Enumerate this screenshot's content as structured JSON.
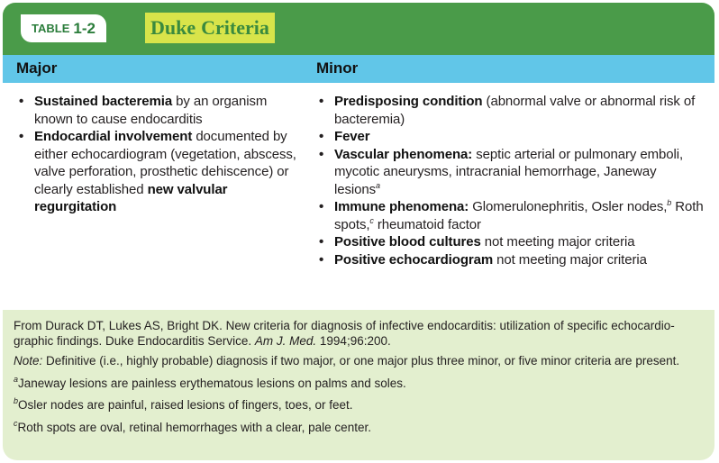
{
  "title_bar": {
    "table_label": "TABLE",
    "table_number": "1-2",
    "title_word1": "Duke",
    "title_word2": "Criteria"
  },
  "columns": {
    "major_heading": "Major",
    "minor_heading": "Minor"
  },
  "major_items": [
    {
      "bold": "Sustained bacteremia",
      "rest": " by an organism known to cause endocarditis"
    },
    {
      "bold": "Endocardial involvement",
      "rest": " documented by either echocardiogram (vegetation, abscess, valve perforation, prosthetic dehiscence) or clearly established ",
      "bold2": "new valvular regurgitation"
    }
  ],
  "minor_items": [
    {
      "bold": "Predisposing condition",
      "rest": " (abnormal valve or abnormal risk of bacteremia)"
    },
    {
      "bold": "Fever",
      "rest": ""
    },
    {
      "bold": "Vascular phenomena:",
      "rest": " septic arterial or pulmonary emboli, mycotic aneurysms, intracranial hemorrhage, Janeway lesions",
      "sup": "a"
    },
    {
      "bold": "Immune phenomena:",
      "rest": " Glomerulonephritis, Osler nodes,",
      "sup": "b",
      "rest2": " Roth spots,",
      "sup2": "c",
      "rest3": " rheumatoid factor"
    },
    {
      "bold": "Positive blood cultures",
      "rest": " not meeting major criteria"
    },
    {
      "bold": "Positive echocardiogram",
      "rest": " not meeting major criteria"
    }
  ],
  "footer": {
    "reference_text": "From Durack DT, Lukes AS, Bright DK. New criteria for diagnosis of infective endocarditis: utilization of specific echocardio-graphic findings. Duke Endocarditis Service. ",
    "reference_journal": "Am J. Med.",
    "reference_tail": " 1994;96:200.",
    "note_label": "Note:",
    "note_text": " Definitive (i.e., highly probable) diagnosis if two major, or one major plus three minor, or five minor criteria are present.",
    "footnote_a_mark": "a",
    "footnote_a": "Janeway lesions are painless erythematous lesions on palms and soles.",
    "footnote_b_mark": "b",
    "footnote_b": "Osler nodes are painful, raised lesions of fingers, toes, or feet.",
    "footnote_c_mark": "c",
    "footnote_c": "Roth spots are oval, retinal hemorrhages with a clear, pale center."
  },
  "colors": {
    "title_bar": "#4a9b49",
    "title_highlight": "#d8e44a",
    "header_row": "#61c6e8",
    "card_background": "#e3efcf"
  }
}
